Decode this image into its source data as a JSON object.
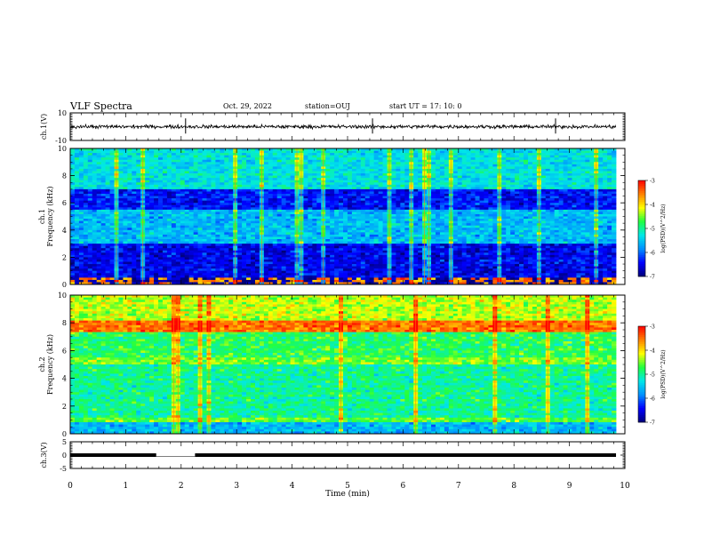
{
  "header": {
    "title": "VLF Spectra",
    "date": "Oct. 29, 2022",
    "station": "station=OUJ",
    "start": "start  UT =   17: 10: 0"
  },
  "chart_data": [
    {
      "type": "line",
      "panel": "ch1-waveform",
      "ylabel": "ch.1(V)",
      "ylim": [
        -10,
        10
      ],
      "yticks": [
        10,
        -10
      ],
      "xlim": [
        0,
        10
      ],
      "approx_level": 0,
      "spikes_at_min": [
        2.08,
        5.45,
        8.75
      ]
    },
    {
      "type": "heatmap",
      "panel": "ch1-spectrogram",
      "ylabel": "ch.1 Frequency (kHz)",
      "ylim": [
        0,
        10
      ],
      "yticks": [
        0,
        2,
        4,
        6,
        8,
        10
      ],
      "xlim": [
        0,
        9.8
      ],
      "colorbar": {
        "label": "log(PSD)(V^2/Hz)",
        "range": [
          -7,
          -3
        ],
        "ticks": [
          -3,
          -4,
          -5,
          -6,
          -7
        ]
      },
      "description_bands": [
        {
          "freq_range_khz": [
            0,
            0.5
          ],
          "level": "mixed narrowband lines"
        },
        {
          "freq_range_khz": [
            0.5,
            3
          ],
          "level": -6.5
        },
        {
          "freq_range_khz": [
            3,
            5.5
          ],
          "level": -5.6
        },
        {
          "freq_range_khz": [
            5.5,
            7
          ],
          "level": -6.4
        },
        {
          "freq_range_khz": [
            7,
            10
          ],
          "level": -5.3
        }
      ]
    },
    {
      "type": "heatmap",
      "panel": "ch2-spectrogram",
      "ylabel": "ch.2 Frequency (kHz)",
      "ylim": [
        0,
        10
      ],
      "yticks": [
        0,
        2,
        4,
        6,
        8,
        10
      ],
      "xlim": [
        0,
        9.8
      ],
      "colorbar": {
        "label": "log(PSD)(V^2/Hz)",
        "range": [
          -7,
          -3
        ],
        "ticks": [
          -3,
          -4,
          -5,
          -6,
          -7
        ]
      },
      "description_bands": [
        {
          "freq_range_khz": [
            0,
            0.8
          ],
          "level": -5.6
        },
        {
          "freq_range_khz": [
            0.8,
            1.2
          ],
          "level": -4.6
        },
        {
          "freq_range_khz": [
            1.2,
            5
          ],
          "level": -5.0
        },
        {
          "freq_range_khz": [
            5,
            5.5
          ],
          "level": -4.5
        },
        {
          "freq_range_khz": [
            5.5,
            7.4
          ],
          "level": -4.8
        },
        {
          "freq_range_khz": [
            7.4,
            8.1
          ],
          "level": -3.5
        },
        {
          "freq_range_khz": [
            8.1,
            10
          ],
          "level": -4.3
        }
      ]
    },
    {
      "type": "line",
      "panel": "ch3-waveform",
      "ylabel": "ch.3(V)",
      "ylim": [
        -5,
        5
      ],
      "yticks": [
        5,
        0,
        -5
      ],
      "xlim": [
        0,
        10
      ],
      "approx_level": 0,
      "gap_min": [
        1.55,
        2.25
      ]
    }
  ],
  "xaxis": {
    "label": "Time (min)",
    "ticks": [
      "0",
      "1",
      "2",
      "3",
      "4",
      "5",
      "6",
      "7",
      "8",
      "9",
      "10"
    ]
  },
  "colors": {
    "colormap": [
      "#00007a",
      "#0000ff",
      "#0090ff",
      "#00e8e8",
      "#20ff40",
      "#ffff00",
      "#ff8000",
      "#ff0000",
      "#ffffff"
    ]
  }
}
